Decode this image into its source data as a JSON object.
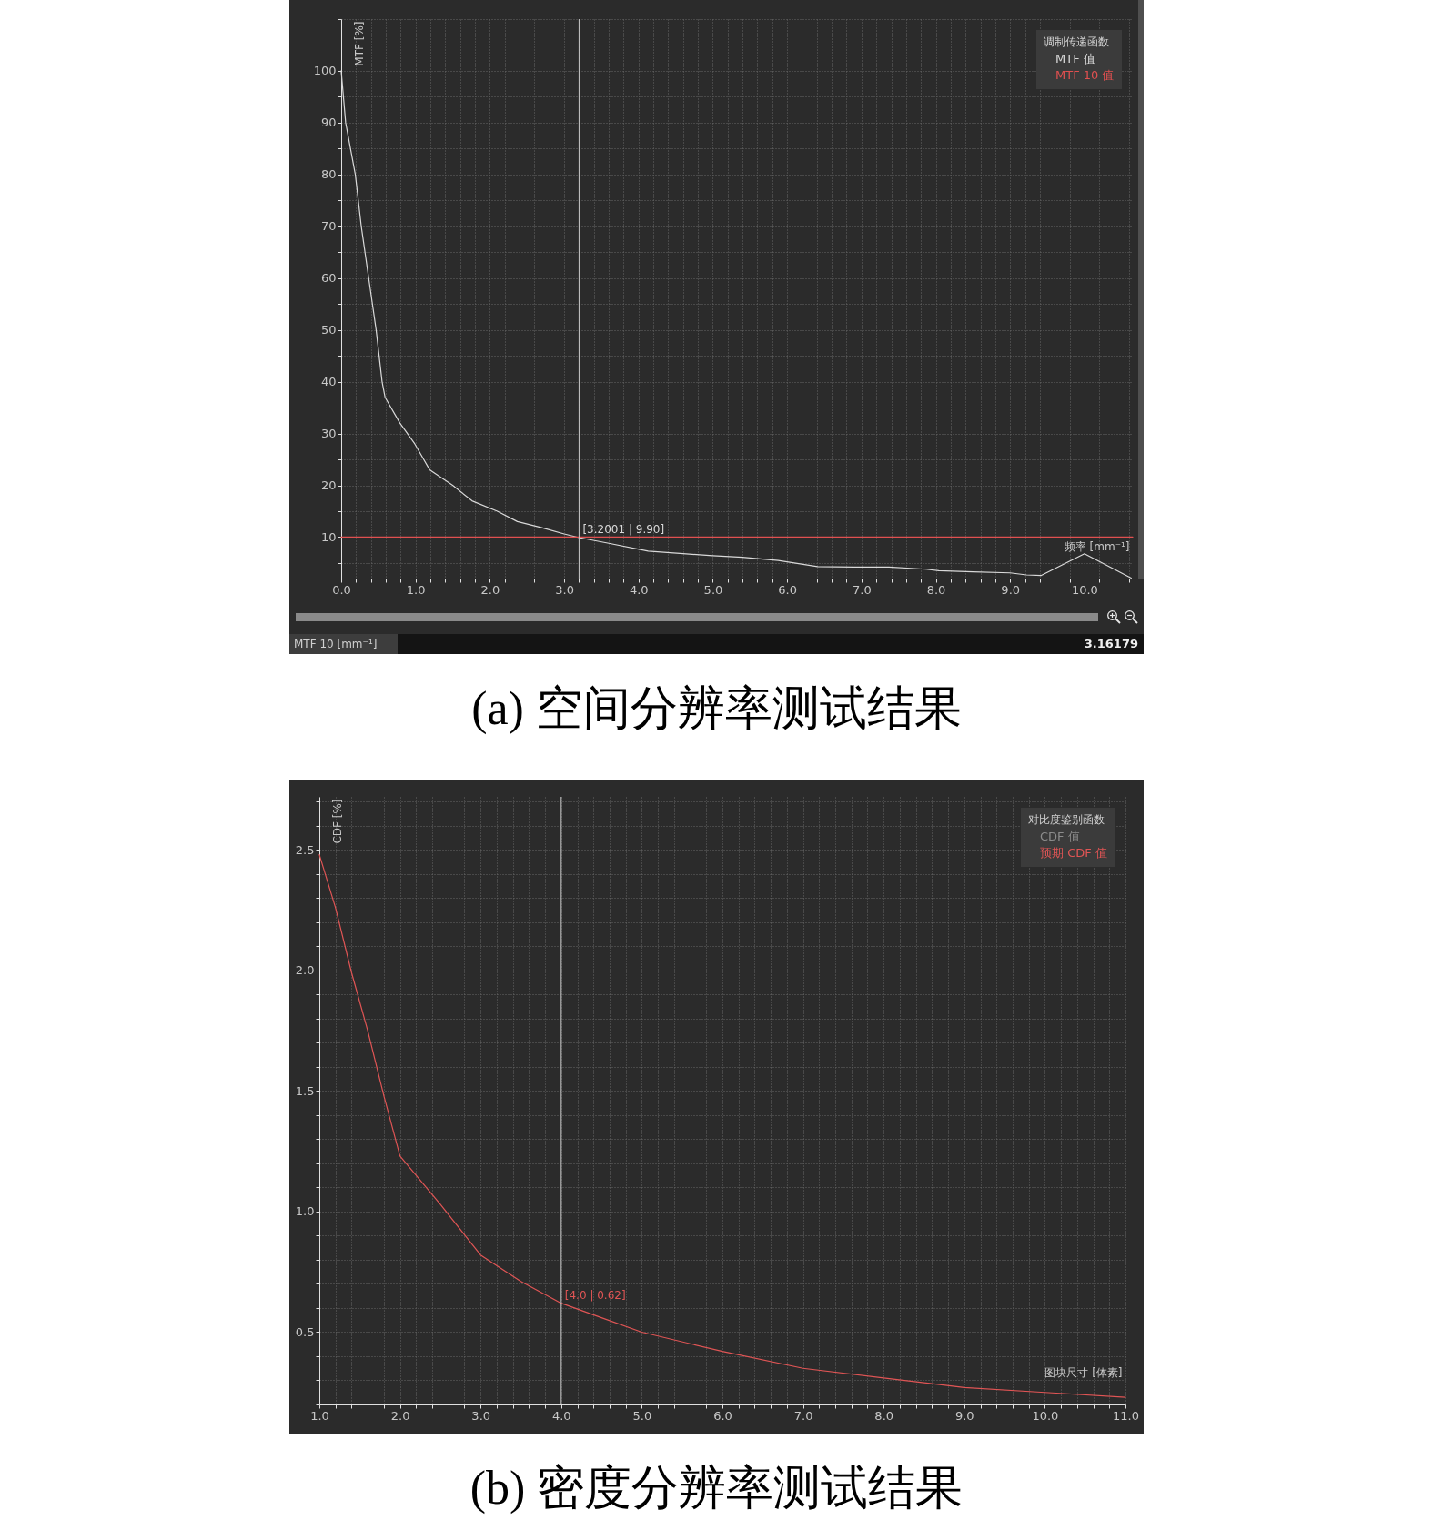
{
  "chart_data": [
    {
      "type": "line",
      "title": "(a) 空间分辨率测试结果",
      "xlabel": "频率 [mm⁻¹]",
      "ylabel": "MTF [%]",
      "legend_title": "调制传递函数",
      "series": [
        {
          "name": "MTF 值",
          "color": "#d9d9d9",
          "x": [
            0,
            0.06,
            0.19,
            0.27,
            0.37,
            0.47,
            0.55,
            0.59,
            0.79,
            0.99,
            1.19,
            1.5,
            1.76,
            2.1,
            2.37,
            2.7,
            3.0,
            3.2001,
            3.6,
            4.13,
            4.6,
            5.0,
            5.4,
            5.88,
            6.41,
            6.9,
            7.37,
            7.87,
            8.04,
            8.5,
            9.0,
            9.22,
            9.42,
            10.0,
            10.63
          ],
          "values": [
            100,
            90,
            80,
            70,
            60,
            50,
            40,
            37,
            32,
            28,
            23,
            20,
            17,
            15,
            13,
            11.8,
            10.6,
            9.9,
            8.8,
            7.3,
            6.8,
            6.4,
            6.1,
            5.5,
            4.3,
            4.2,
            4.2,
            3.8,
            3.5,
            3.3,
            3.1,
            2.7,
            2.6,
            6.8,
            2.1
          ]
        },
        {
          "name": "MTF 10 值",
          "color": "#e05050",
          "x": [
            0,
            10.65
          ],
          "values": [
            10,
            10
          ]
        }
      ],
      "xlim": [
        0,
        10.65
      ],
      "ylim": [
        2,
        110
      ],
      "xticks": [
        {
          "value": 0,
          "label": "0.0"
        },
        {
          "value": 0.2,
          "label": null
        },
        {
          "value": 0.4,
          "label": null
        },
        {
          "value": 0.6,
          "label": null
        },
        {
          "value": 0.8,
          "label": null
        },
        {
          "value": 1,
          "label": "1.0"
        },
        {
          "value": 1.2,
          "label": null
        },
        {
          "value": 1.4,
          "label": null
        },
        {
          "value": 1.6,
          "label": null
        },
        {
          "value": 1.8,
          "label": null
        },
        {
          "value": 2,
          "label": "2.0"
        },
        {
          "value": 2.2,
          "label": null
        },
        {
          "value": 2.4,
          "label": null
        },
        {
          "value": 2.6,
          "label": null
        },
        {
          "value": 2.8,
          "label": null
        },
        {
          "value": 3,
          "label": "3.0"
        },
        {
          "value": 3.2,
          "label": null
        },
        {
          "value": 3.4,
          "label": null
        },
        {
          "value": 3.6,
          "label": null
        },
        {
          "value": 3.8,
          "label": null
        },
        {
          "value": 4,
          "label": "4.0"
        },
        {
          "value": 4.2,
          "label": null
        },
        {
          "value": 4.4,
          "label": null
        },
        {
          "value": 4.6,
          "label": null
        },
        {
          "value": 4.8,
          "label": null
        },
        {
          "value": 5,
          "label": "5.0"
        },
        {
          "value": 5.2,
          "label": null
        },
        {
          "value": 5.4,
          "label": null
        },
        {
          "value": 5.6,
          "label": null
        },
        {
          "value": 5.8,
          "label": null
        },
        {
          "value": 6,
          "label": "6.0"
        },
        {
          "value": 6.2,
          "label": null
        },
        {
          "value": 6.4,
          "label": null
        },
        {
          "value": 6.6,
          "label": null
        },
        {
          "value": 6.8,
          "label": null
        },
        {
          "value": 7,
          "label": "7.0"
        },
        {
          "value": 7.2,
          "label": null
        },
        {
          "value": 7.4,
          "label": null
        },
        {
          "value": 7.6,
          "label": null
        },
        {
          "value": 7.8,
          "label": null
        },
        {
          "value": 8,
          "label": "8.0"
        },
        {
          "value": 8.2,
          "label": null
        },
        {
          "value": 8.4,
          "label": null
        },
        {
          "value": 8.6,
          "label": null
        },
        {
          "value": 8.8,
          "label": null
        },
        {
          "value": 9,
          "label": "9.0"
        },
        {
          "value": 9.2,
          "label": null
        },
        {
          "value": 9.4,
          "label": null
        },
        {
          "value": 9.6,
          "label": null
        },
        {
          "value": 9.8,
          "label": null
        },
        {
          "value": 10,
          "label": "10.0"
        },
        {
          "value": 10.2,
          "label": null
        },
        {
          "value": 10.4,
          "label": null
        },
        {
          "value": 10.6,
          "label": null
        }
      ],
      "yticks": [
        {
          "value": 5,
          "label": null
        },
        10,
        {
          "value": 15,
          "label": null
        },
        20,
        {
          "value": 25,
          "label": null
        },
        30,
        {
          "value": 35,
          "label": null
        },
        40,
        {
          "value": 45,
          "label": null
        },
        50,
        {
          "value": 55,
          "label": null
        },
        60,
        {
          "value": 65,
          "label": null
        },
        70,
        {
          "value": 75,
          "label": null
        },
        80,
        {
          "value": 85,
          "label": null
        },
        90,
        {
          "value": 95,
          "label": null
        },
        100,
        {
          "value": 105,
          "label": null
        },
        {
          "value": 110,
          "label": null
        }
      ],
      "grid": true,
      "legend": "top right",
      "ref_lines": [
        {
          "axis": "x",
          "value": 3.2001,
          "color": "#c8c8c8"
        }
      ],
      "annotations": [
        {
          "text": "[3.2001 | 9.90]",
          "x": 3.2001,
          "y": 9.9
        },
        "MTF 10 [mm⁻¹]",
        "3.16179"
      ]
    },
    {
      "type": "line",
      "title": "(b) 密度分辨率测试结果",
      "xlabel": "图块尺寸 [体素]",
      "ylabel": "CDF [%]",
      "legend_title": "对比度鉴别函数",
      "x": [
        1.0,
        1.2,
        1.4,
        1.6,
        1.8,
        2.0,
        2.5,
        3.0,
        3.5,
        4.0,
        4.5,
        5.0,
        6.0,
        7.0,
        8.0,
        9.0,
        10.0,
        11.0
      ],
      "series": [
        {
          "name": "CDF 值",
          "color": "#8c8c8c",
          "values": [
            null,
            null,
            null,
            null,
            null,
            null,
            null,
            null,
            null,
            null,
            null,
            null,
            null,
            null,
            null,
            null,
            null,
            null
          ]
        },
        {
          "name": "预期 CDF 值",
          "color": "#e05555",
          "values": [
            2.48,
            2.26,
            1.99,
            1.75,
            1.48,
            1.23,
            1.03,
            0.82,
            0.71,
            0.62,
            0.56,
            0.5,
            0.42,
            0.35,
            0.31,
            0.27,
            0.25,
            0.23
          ]
        }
      ],
      "xlim": [
        1,
        11
      ],
      "ylim": [
        0.2,
        2.72
      ],
      "xticks": [
        {
          "value": 1,
          "label": "1.0"
        },
        {
          "value": 1.2,
          "label": null
        },
        {
          "value": 1.4,
          "label": null
        },
        {
          "value": 1.6,
          "label": null
        },
        {
          "value": 1.8,
          "label": null
        },
        {
          "value": 2,
          "label": "2.0"
        },
        {
          "value": 2.2,
          "label": null
        },
        {
          "value": 2.4,
          "label": null
        },
        {
          "value": 2.6,
          "label": null
        },
        {
          "value": 2.8,
          "label": null
        },
        {
          "value": 3,
          "label": "3.0"
        },
        {
          "value": 3.2,
          "label": null
        },
        {
          "value": 3.4,
          "label": null
        },
        {
          "value": 3.6,
          "label": null
        },
        {
          "value": 3.8,
          "label": null
        },
        {
          "value": 4,
          "label": "4.0"
        },
        {
          "value": 4.2,
          "label": null
        },
        {
          "value": 4.4,
          "label": null
        },
        {
          "value": 4.6,
          "label": null
        },
        {
          "value": 4.8,
          "label": null
        },
        {
          "value": 5,
          "label": "5.0"
        },
        {
          "value": 5.2,
          "label": null
        },
        {
          "value": 5.4,
          "label": null
        },
        {
          "value": 5.6,
          "label": null
        },
        {
          "value": 5.8,
          "label": null
        },
        {
          "value": 6,
          "label": "6.0"
        },
        {
          "value": 6.2,
          "label": null
        },
        {
          "value": 6.4,
          "label": null
        },
        {
          "value": 6.6,
          "label": null
        },
        {
          "value": 6.8,
          "label": null
        },
        {
          "value": 7,
          "label": "7.0"
        },
        {
          "value": 7.2,
          "label": null
        },
        {
          "value": 7.4,
          "label": null
        },
        {
          "value": 7.6,
          "label": null
        },
        {
          "value": 7.8,
          "label": null
        },
        {
          "value": 8,
          "label": "8.0"
        },
        {
          "value": 8.2,
          "label": null
        },
        {
          "value": 8.4,
          "label": null
        },
        {
          "value": 8.6,
          "label": null
        },
        {
          "value": 8.8,
          "label": null
        },
        {
          "value": 9,
          "label": "9.0"
        },
        {
          "value": 9.2,
          "label": null
        },
        {
          "value": 9.4,
          "label": null
        },
        {
          "value": 9.6,
          "label": null
        },
        {
          "value": 9.8,
          "label": null
        },
        {
          "value": 10,
          "label": "10.0"
        },
        {
          "value": 10.2,
          "label": null
        },
        {
          "value": 10.4,
          "label": null
        },
        {
          "value": 10.6,
          "label": null
        },
        {
          "value": 10.8,
          "label": null
        },
        {
          "value": 11,
          "label": "11.0"
        }
      ],
      "yticks": [
        {
          "value": 0.2,
          "label": null
        },
        {
          "value": 0.3,
          "label": null
        },
        {
          "value": 0.4,
          "label": null
        },
        0.5,
        {
          "value": 0.6,
          "label": null
        },
        {
          "value": 0.7,
          "label": null
        },
        {
          "value": 0.8,
          "label": null
        },
        {
          "value": 0.9,
          "label": null
        },
        {
          "value": 1.0,
          "label": "1.0"
        },
        {
          "value": 1.1,
          "label": null
        },
        {
          "value": 1.2,
          "label": null
        },
        {
          "value": 1.3,
          "label": null
        },
        {
          "value": 1.4,
          "label": null
        },
        1.5,
        {
          "value": 1.6,
          "label": null
        },
        {
          "value": 1.7,
          "label": null
        },
        {
          "value": 1.8,
          "label": null
        },
        {
          "value": 1.9,
          "label": null
        },
        {
          "value": 2.0,
          "label": "2.0"
        },
        {
          "value": 2.1,
          "label": null
        },
        {
          "value": 2.2,
          "label": null
        },
        {
          "value": 2.3,
          "label": null
        },
        {
          "value": 2.4,
          "label": null
        },
        2.5,
        {
          "value": 2.6,
          "label": null
        },
        {
          "value": 2.7,
          "label": null
        }
      ],
      "grid": true,
      "legend": "top right",
      "ref_lines": [
        {
          "axis": "x",
          "value": 4.0,
          "color": "#c8c8c8"
        }
      ],
      "annotations": [
        {
          "text": "[4.0 | 0.62]",
          "x": 4.0,
          "y": 0.62
        }
      ]
    }
  ]
}
